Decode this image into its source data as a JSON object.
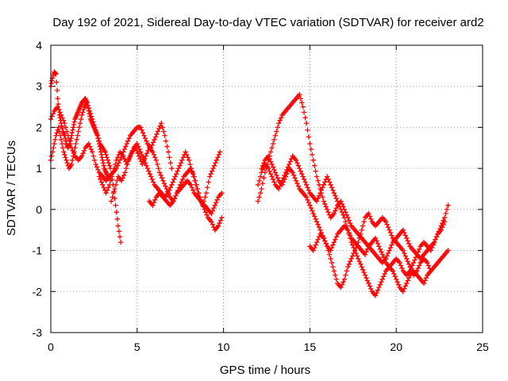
{
  "chart_data": {
    "type": "scatter",
    "title": "Day 192 of 2021, Sidereal Day-to-day VTEC variation (SDTVAR) for receiver ard2",
    "xlabel": "GPS time / hours",
    "ylabel": "SDTVAR / TECUs",
    "xlim": [
      0,
      25
    ],
    "ylim": [
      -3,
      4
    ],
    "x_ticks": [
      0,
      5,
      10,
      15,
      20,
      25
    ],
    "x_tick_labels": [
      "0",
      "5",
      "10",
      "15",
      "20",
      "25"
    ],
    "y_ticks": [
      -3,
      -2,
      -1,
      0,
      1,
      2,
      3,
      4
    ],
    "y_tick_labels": [
      "-3",
      "-2",
      "-1",
      "0",
      "1",
      "2",
      "3",
      "4"
    ],
    "grid": true,
    "marker": "+",
    "marker_color": "#ff0000",
    "series": [
      {
        "name": "track-1",
        "x": [
          0.0,
          0.15,
          0.3,
          0.45,
          0.6,
          0.75,
          0.9,
          1.05,
          1.2,
          1.35,
          1.5,
          1.65,
          1.8,
          1.95,
          2.1,
          2.25,
          2.4,
          2.55,
          2.7,
          2.85,
          3.0,
          3.15,
          3.3,
          3.45,
          3.6,
          3.75,
          3.9,
          4.05
        ],
        "y": [
          1.2,
          1.5,
          1.8,
          2.0,
          1.7,
          1.4,
          1.2,
          1.0,
          1.1,
          1.4,
          1.7,
          2.0,
          2.3,
          2.5,
          2.6,
          2.4,
          2.2,
          2.0,
          1.8,
          1.6,
          1.5,
          1.4,
          1.2,
          1.0,
          0.6,
          0.1,
          -0.4,
          -0.8
        ]
      },
      {
        "name": "track-2",
        "x": [
          0.0,
          0.1,
          0.2,
          0.3,
          0.4,
          0.5,
          0.6,
          0.7,
          0.8,
          0.9,
          1.0,
          1.1,
          1.2,
          1.3,
          1.4,
          1.5,
          1.6,
          1.7,
          1.8,
          1.9,
          2.0,
          2.1,
          2.2,
          2.3,
          2.4,
          2.5,
          2.6,
          2.7,
          2.8,
          2.9,
          3.0,
          3.1,
          3.2,
          3.3
        ],
        "y": [
          3.0,
          3.2,
          3.35,
          3.3,
          2.7,
          2.3,
          2.1,
          1.9,
          1.8,
          1.6,
          1.5,
          1.6,
          1.8,
          2.0,
          2.2,
          2.3,
          2.4,
          2.5,
          2.6,
          2.65,
          2.7,
          2.6,
          2.4,
          2.2,
          2.1,
          2.0,
          1.9,
          1.8,
          1.6,
          1.4,
          1.2,
          1.0,
          0.9,
          0.8
        ]
      },
      {
        "name": "track-3",
        "x": [
          0.0,
          0.2,
          0.4,
          0.6,
          0.8,
          1.0,
          1.2,
          1.4,
          1.6,
          1.8,
          2.0,
          2.2,
          2.4,
          2.6,
          2.8,
          3.0,
          3.2,
          3.4,
          3.6,
          3.8,
          4.0,
          4.2,
          4.4,
          4.6,
          4.8,
          5.0,
          5.2,
          5.4,
          5.6,
          5.8,
          6.0,
          6.2,
          6.4,
          6.6,
          6.8,
          7.0
        ],
        "y": [
          2.2,
          2.4,
          2.5,
          2.3,
          2.1,
          1.8,
          1.5,
          1.3,
          1.2,
          1.3,
          1.5,
          1.6,
          1.4,
          1.1,
          0.9,
          0.8,
          0.7,
          0.8,
          0.9,
          1.0,
          1.2,
          1.4,
          1.6,
          1.8,
          1.9,
          2.0,
          2.0,
          1.8,
          1.6,
          1.5,
          1.7,
          1.9,
          2.1,
          1.8,
          1.4,
          1.0
        ]
      },
      {
        "name": "track-4",
        "x": [
          2.8,
          3.0,
          3.2,
          3.4,
          3.6,
          3.8,
          4.0,
          4.2,
          4.4,
          4.6,
          4.8,
          5.0,
          5.2,
          5.4,
          5.6,
          5.8,
          6.0,
          6.2,
          6.4,
          6.6,
          6.8,
          7.0,
          7.2,
          7.4,
          7.6,
          7.8,
          8.0,
          8.2,
          8.4,
          8.6,
          8.8,
          9.0,
          9.2,
          9.4,
          9.6,
          9.8
        ],
        "y": [
          0.8,
          0.6,
          0.4,
          0.6,
          0.9,
          1.2,
          1.4,
          1.3,
          1.1,
          1.3,
          1.5,
          1.6,
          1.4,
          1.2,
          1.0,
          0.8,
          0.6,
          0.5,
          0.4,
          0.3,
          0.4,
          0.6,
          0.8,
          1.0,
          1.2,
          1.4,
          1.2,
          0.9,
          0.6,
          0.3,
          0.1,
          0.4,
          0.8,
          1.0,
          1.2,
          1.4
        ]
      },
      {
        "name": "track-5",
        "x": [
          3.5,
          3.7,
          3.9,
          4.1,
          4.3,
          4.5,
          4.7,
          4.9,
          5.1,
          5.3,
          5.5,
          5.7,
          5.9,
          6.1,
          6.3,
          6.5,
          6.7,
          6.9,
          7.1,
          7.3,
          7.5,
          7.7,
          7.9,
          8.1,
          8.3,
          8.5,
          8.7,
          8.9,
          9.1,
          9.3,
          9.5,
          9.7,
          9.9
        ],
        "y": [
          0.2,
          0.5,
          0.8,
          0.7,
          0.9,
          1.2,
          1.4,
          1.5,
          1.3,
          1.1,
          1.3,
          1.5,
          1.4,
          1.2,
          0.9,
          0.7,
          0.5,
          0.3,
          0.2,
          0.4,
          0.6,
          0.8,
          0.9,
          1.0,
          0.8,
          0.5,
          0.2,
          0.0,
          -0.2,
          -0.3,
          -0.5,
          -0.4,
          -0.2
        ]
      },
      {
        "name": "track-6",
        "x": [
          5.7,
          5.9,
          6.1,
          6.3,
          6.5,
          6.7,
          6.9,
          7.1,
          7.3,
          7.5,
          7.7,
          7.9,
          8.1,
          8.3,
          8.5,
          8.7,
          8.9,
          9.1,
          9.3,
          9.5,
          9.7,
          9.9
        ],
        "y": [
          0.2,
          0.1,
          0.3,
          0.4,
          0.3,
          0.2,
          0.1,
          0.2,
          0.4,
          0.5,
          0.6,
          0.7,
          0.6,
          0.4,
          0.3,
          0.2,
          0.1,
          0.0,
          -0.1,
          0.1,
          0.3,
          0.4
        ]
      },
      {
        "name": "track-7",
        "x": [
          12.0,
          12.2,
          12.4,
          12.6,
          12.8,
          13.0,
          13.2,
          13.4,
          13.6,
          13.8,
          14.0,
          14.2,
          14.4,
          14.6,
          14.8,
          15.0,
          15.2,
          15.4,
          15.6,
          15.8,
          16.0,
          16.2,
          16.4,
          16.6,
          16.8,
          17.0,
          17.2,
          17.4,
          17.6,
          17.8,
          18.0,
          18.2,
          18.4,
          18.6,
          18.8,
          19.0,
          19.2,
          19.4,
          19.6,
          19.8,
          20.0,
          20.2,
          20.4,
          20.6,
          20.8,
          21.0,
          21.2,
          21.4,
          21.6,
          21.8,
          22.0,
          22.2,
          22.4,
          22.6,
          22.8,
          23.0
        ],
        "y": [
          0.2,
          0.5,
          0.9,
          1.2,
          1.5,
          1.8,
          2.1,
          2.3,
          2.4,
          2.5,
          2.6,
          2.7,
          2.8,
          2.5,
          2.1,
          1.6,
          1.2,
          0.8,
          0.5,
          0.2,
          0.0,
          -0.2,
          -0.1,
          0.1,
          0.2,
          0.0,
          -0.2,
          -0.4,
          -0.5,
          -0.6,
          -0.7,
          -0.8,
          -0.9,
          -1.0,
          -1.1,
          -1.2,
          -1.3,
          -1.2,
          -1.0,
          -0.8,
          -0.7,
          -0.6,
          -0.5,
          -0.7,
          -0.9,
          -1.0,
          -1.1,
          -1.2,
          -1.1,
          -1.0,
          -0.9,
          -0.8,
          -0.6,
          -0.4,
          -0.2,
          0.1
        ]
      },
      {
        "name": "track-8",
        "x": [
          12.0,
          12.2,
          12.4,
          12.6,
          12.8,
          13.0,
          13.2,
          13.4,
          13.6,
          13.8,
          14.0,
          14.2,
          14.4,
          14.6,
          14.8,
          15.0,
          15.2,
          15.4,
          15.6,
          15.8,
          16.0,
          16.2,
          16.4,
          16.6,
          16.8,
          17.0,
          17.2,
          17.4,
          17.6,
          17.8,
          18.0,
          18.2,
          18.4,
          18.6,
          18.8,
          19.0,
          19.2,
          19.4,
          19.6,
          19.8,
          20.0,
          20.2,
          20.4,
          20.6,
          20.8,
          21.0,
          21.2,
          21.4,
          21.6,
          21.8,
          22.0,
          22.2,
          22.4,
          22.6,
          22.8,
          23.0
        ],
        "y": [
          0.6,
          0.9,
          1.1,
          1.0,
          0.8,
          0.6,
          0.5,
          0.7,
          0.9,
          1.1,
          1.3,
          1.2,
          1.0,
          0.8,
          0.6,
          0.4,
          0.3,
          0.2,
          0.4,
          0.6,
          0.8,
          0.6,
          0.4,
          0.2,
          0.0,
          -0.2,
          -0.5,
          -0.8,
          -1.0,
          -1.2,
          -1.4,
          -1.6,
          -1.8,
          -2.0,
          -2.1,
          -1.9,
          -1.7,
          -1.5,
          -1.4,
          -1.5,
          -1.7,
          -1.9,
          -2.0,
          -1.8,
          -1.6,
          -1.5,
          -1.6,
          -1.7,
          -1.8,
          -1.6,
          -1.5,
          -1.4,
          -1.3,
          -1.2,
          -1.1,
          -1.0
        ]
      },
      {
        "name": "track-9",
        "x": [
          12.2,
          12.4,
          12.6,
          12.8,
          13.0,
          13.2,
          13.4,
          13.6,
          13.8,
          14.0,
          14.2,
          14.4,
          14.6,
          14.8,
          15.0,
          15.2,
          15.4,
          15.6,
          15.8,
          16.0,
          16.2,
          16.4,
          16.6,
          16.8,
          17.0,
          17.2,
          17.4,
          17.6,
          17.8,
          18.0,
          18.2,
          18.4,
          18.6,
          18.8,
          19.0,
          19.2,
          19.4,
          19.6,
          19.8,
          20.0,
          20.2,
          20.4,
          20.6,
          20.8,
          21.0,
          21.2,
          21.4,
          21.6,
          21.8,
          22.0,
          22.2,
          22.4,
          22.6,
          22.8
        ],
        "y": [
          1.0,
          1.2,
          1.3,
          1.1,
          0.9,
          0.7,
          0.6,
          0.8,
          1.0,
          0.9,
          0.7,
          0.5,
          0.4,
          0.3,
          0.1,
          -0.1,
          -0.3,
          -0.5,
          -0.7,
          -0.9,
          -1.0,
          -0.8,
          -0.6,
          -0.5,
          -0.4,
          -0.5,
          -0.7,
          -0.8,
          -0.9,
          -1.0,
          -1.1,
          -0.9,
          -0.8,
          -0.7,
          -0.9,
          -1.1,
          -1.3,
          -1.4,
          -1.3,
          -1.2,
          -1.3,
          -1.5,
          -1.6,
          -1.5,
          -1.3,
          -1.1,
          -0.9,
          -0.8,
          -0.9,
          -1.0,
          -0.8,
          -0.6,
          -0.5,
          -0.3
        ]
      },
      {
        "name": "track-10",
        "x": [
          15.0,
          15.2,
          15.4,
          15.6,
          15.8,
          16.0,
          16.2,
          16.4,
          16.6,
          16.8,
          17.0,
          17.2,
          17.4,
          17.6,
          17.8,
          18.0,
          18.2,
          18.4,
          18.6,
          18.8,
          19.0,
          19.2,
          19.4,
          19.6,
          19.8,
          20.0,
          20.2,
          20.4,
          20.6,
          20.8,
          21.0,
          21.2,
          21.4,
          21.6,
          21.8,
          22.0
        ],
        "y": [
          -0.9,
          -1.0,
          -0.8,
          -0.6,
          -0.7,
          -0.9,
          -1.2,
          -1.5,
          -1.8,
          -1.9,
          -1.7,
          -1.4,
          -1.2,
          -1.0,
          -0.8,
          -0.5,
          -0.2,
          -0.1,
          -0.3,
          -0.4,
          -0.3,
          -0.2,
          -0.3,
          -0.5,
          -0.7,
          -0.8,
          -0.9,
          -1.0,
          -1.2,
          -1.4,
          -1.6,
          -1.5,
          -1.3,
          -1.2,
          -1.3,
          -1.5
        ]
      }
    ]
  }
}
